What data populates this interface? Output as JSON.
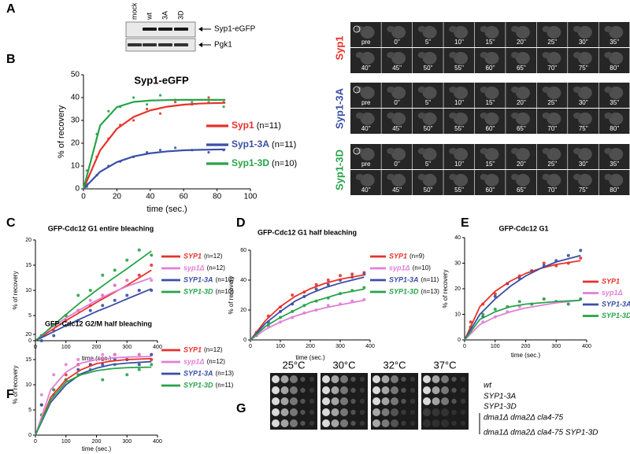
{
  "panels": [
    "A",
    "B",
    "C",
    "D",
    "E",
    "F",
    "G"
  ],
  "blot": {
    "lanes": [
      "mock",
      "wt",
      "3A",
      "3D"
    ],
    "bands": [
      "Syp1-eGFP",
      "Pgk1"
    ]
  },
  "timelapse": {
    "strains": [
      {
        "name": "Syp1",
        "color": "#e8312a"
      },
      {
        "name": "Syp1-3A",
        "color": "#3a4fa5"
      },
      {
        "name": "Syp1-3D",
        "color": "#27a348"
      }
    ],
    "times": [
      "pre",
      "0''",
      "5''",
      "10''",
      "15''",
      "20''",
      "25''",
      "30''",
      "35''",
      "40''",
      "45''",
      "50''",
      "55''",
      "60''",
      "65''",
      "70''",
      "75''",
      "80''"
    ]
  },
  "spot_assay": {
    "temperatures": [
      "25°C",
      "30°C",
      "32°C",
      "37°C"
    ],
    "strains": [
      "wt",
      "SYP1-3A",
      "SYP1-3D",
      "dma1Δ dma2Δ cla4-75",
      "dma1Δ dma2Δ cla4-75 SYP1-3D"
    ]
  },
  "chart_data": [
    {
      "type": "scatter",
      "title": "Syp1-eGFP",
      "xlabel": "time (sec.)",
      "ylabel": "% of recovery",
      "xlim": [
        0,
        100
      ],
      "xticks": [
        0,
        20,
        40,
        60,
        80,
        100
      ],
      "ylim": [
        0,
        50
      ],
      "yticks": [
        0,
        10,
        20,
        30,
        40,
        50
      ],
      "legend_italic": false,
      "x": [
        2,
        8,
        15,
        22,
        30,
        38,
        46,
        55,
        65,
        75,
        84
      ],
      "fit_x": [
        0,
        10,
        20,
        30,
        40,
        50,
        60,
        70,
        85
      ],
      "series": [
        {
          "name": "Syp1",
          "note": "(n=11)",
          "color": "#e8312a",
          "values": [
            2,
            14,
            22,
            28,
            30,
            35,
            33,
            38,
            37,
            40,
            38
          ],
          "fit": [
            0,
            16.9,
            26.3,
            31.5,
            34.4,
            36.0,
            36.9,
            37.4,
            37.7
          ]
        },
        {
          "name": "Syp1-3A",
          "note": "(n=11)",
          "color": "#3a4fa5",
          "values": [
            1,
            6,
            10,
            12,
            14,
            16,
            17,
            18,
            17,
            16,
            17
          ],
          "fit": [
            0,
            7.5,
            11.7,
            14.2,
            15.6,
            16.4,
            16.9,
            17.1,
            17.3
          ]
        },
        {
          "name": "Syp1-3D",
          "note": "(n=10)",
          "color": "#27a348",
          "values": [
            8,
            24,
            34,
            36,
            40,
            37,
            41,
            39,
            38,
            38,
            36
          ],
          "fit": [
            0,
            27.8,
            35.8,
            38.1,
            38.7,
            38.9,
            39.0,
            39.0,
            39.0
          ]
        }
      ]
    },
    {
      "type": "scatter",
      "title": "GFP-Cdc12 G1 entire bleaching",
      "xlabel": "time (sec.)",
      "ylabel": "% of recovery",
      "xlim": [
        0,
        400
      ],
      "xticks": [
        0,
        100,
        200,
        300,
        400
      ],
      "ylim": [
        0,
        20
      ],
      "yticks": [
        0,
        5,
        10,
        15,
        20
      ],
      "legend_italic": true,
      "x": [
        20,
        60,
        100,
        140,
        180,
        220,
        260,
        300,
        340,
        380
      ],
      "fit_x": [
        0,
        50,
        100,
        150,
        200,
        250,
        300,
        380
      ],
      "series": [
        {
          "name": "SYP1",
          "note": "(n=12)",
          "color": "#e8312a",
          "values": [
            1,
            2,
            4,
            6,
            7,
            9,
            11,
            12,
            13,
            15
          ],
          "fit": [
            0,
            2.0,
            4.0,
            5.8,
            7.6,
            9.3,
            11,
            14
          ]
        },
        {
          "name": "syp1Δ",
          "note": "(n=12)",
          "color": "#e07fd6",
          "values": [
            1,
            3,
            5,
            6,
            8,
            9,
            11,
            12,
            10,
            12
          ],
          "fit": [
            0,
            2.5,
            4.5,
            6.3,
            8,
            9.5,
            10.8,
            12.5
          ]
        },
        {
          "name": "SYP1-3A",
          "note": "(n=10)",
          "color": "#3a4fa5",
          "values": [
            0,
            1,
            3,
            4,
            6,
            7,
            8,
            9,
            10,
            10
          ],
          "fit": [
            0,
            1.5,
            3,
            4.4,
            5.8,
            7,
            8.3,
            10.3
          ]
        },
        {
          "name": "SYP1-3D",
          "note": "(n=10)",
          "color": "#27a348",
          "values": [
            1,
            3,
            5,
            9,
            10,
            13,
            14,
            16,
            18,
            17
          ],
          "fit": [
            0,
            2.6,
            5.2,
            7.7,
            10,
            12.2,
            14.3,
            17.8
          ]
        }
      ]
    },
    {
      "type": "scatter",
      "title": "GFP-Cdc12 G1 half bleaching",
      "xlabel": "time (sec.)",
      "ylabel": "% of recovery",
      "xlim": [
        0,
        400
      ],
      "xticks": [
        0,
        100,
        200,
        300,
        400
      ],
      "ylim": [
        0,
        60
      ],
      "yticks": [
        0,
        20,
        40,
        60
      ],
      "legend_italic": true,
      "x": [
        20,
        60,
        100,
        140,
        180,
        220,
        260,
        300,
        340,
        380
      ],
      "fit_x": [
        0,
        50,
        100,
        150,
        200,
        250,
        300,
        380
      ],
      "series": [
        {
          "name": "SYP1",
          "note": "(n=9)",
          "color": "#e8312a",
          "values": [
            5,
            16,
            22,
            30,
            32,
            37,
            40,
            43,
            44,
            45
          ],
          "fit": [
            0,
            12.9,
            22.3,
            29.2,
            34.2,
            37.9,
            40.6,
            43.5
          ]
        },
        {
          "name": "syp1Δ",
          "note": "(n=10)",
          "color": "#e07fd6",
          "values": [
            4,
            9,
            12,
            15,
            18,
            20,
            23,
            24,
            26,
            27
          ],
          "fit": [
            0,
            7,
            12,
            16,
            19,
            21.5,
            23.5,
            26.5
          ]
        },
        {
          "name": "SYP1-3A",
          "note": "(n=11)",
          "color": "#3a4fa5",
          "values": [
            3,
            12,
            19,
            24,
            29,
            34,
            37,
            40,
            42,
            44
          ],
          "fit": [
            0,
            11,
            19,
            26,
            31,
            35,
            38,
            42
          ]
        },
        {
          "name": "SYP1-3D",
          "note": "(n=13)",
          "color": "#27a348",
          "values": [
            4,
            10,
            15,
            19,
            23,
            26,
            28,
            31,
            33,
            35
          ],
          "fit": [
            0,
            9,
            15,
            20,
            25,
            28,
            31,
            34
          ]
        }
      ]
    },
    {
      "type": "scatter",
      "title": "GFP-Cdc12 G1",
      "xlabel": "time (sec.)",
      "ylabel": "% of recovery",
      "xlim": [
        0,
        400
      ],
      "xticks": [
        0,
        100,
        200,
        300,
        400
      ],
      "ylim": [
        0,
        40
      ],
      "yticks": [
        0,
        10,
        20,
        30,
        40
      ],
      "legend_italic": true,
      "x": [
        20,
        60,
        100,
        140,
        180,
        220,
        260,
        300,
        340,
        380
      ],
      "fit_x": [
        0,
        50,
        100,
        150,
        200,
        250,
        300,
        380
      ],
      "series": [
        {
          "name": "SYP1",
          "color": "#e8312a",
          "values": [
            7,
            14,
            18,
            22,
            25,
            27,
            30,
            29,
            30,
            32
          ],
          "fit": [
            0,
            13,
            19,
            23,
            26,
            28,
            29.5,
            31
          ]
        },
        {
          "name": "syp1Δ",
          "color": "#e07fd6",
          "values": [
            3,
            7,
            9,
            11,
            13,
            14,
            16,
            15,
            14,
            16
          ],
          "fit": [
            0,
            6,
            9,
            11,
            12.5,
            13.5,
            14.5,
            15.5
          ]
        },
        {
          "name": "SYP1-3A",
          "color": "#3a4fa5",
          "values": [
            5,
            9,
            17,
            22,
            24,
            27,
            29,
            31,
            33,
            35
          ],
          "fit": [
            0,
            10,
            16,
            21,
            25,
            28,
            30.5,
            33
          ]
        },
        {
          "name": "SYP1-3D",
          "color": "#27a348",
          "values": [
            5,
            10,
            12,
            13,
            15,
            14,
            16,
            15,
            14,
            16
          ],
          "fit": [
            0,
            8,
            11,
            13,
            14,
            14.5,
            15,
            15.5
          ]
        }
      ]
    },
    {
      "type": "scatter",
      "title": "GFP-Cdc12 G2/M half bleaching",
      "xlabel": "time (sec.)",
      "ylabel": "% of recovery",
      "xlim": [
        0,
        400
      ],
      "xticks": [
        0,
        100,
        200,
        300,
        400
      ],
      "ylim": [
        0,
        20
      ],
      "yticks": [
        0,
        5,
        10,
        15,
        20
      ],
      "legend_italic": true,
      "x": [
        20,
        60,
        100,
        140,
        180,
        220,
        260,
        300,
        340,
        380
      ],
      "fit_x": [
        0,
        50,
        100,
        150,
        200,
        250,
        300,
        380
      ],
      "series": [
        {
          "name": "SYP1",
          "note": "(n=12)",
          "color": "#e8312a",
          "values": [
            6,
            9,
            12,
            14,
            14,
            15,
            16,
            15,
            16,
            15
          ],
          "fit": [
            0,
            7.5,
            11,
            13,
            14.2,
            14.7,
            15,
            15.2
          ]
        },
        {
          "name": "syp1Δ",
          "note": "(n=12)",
          "color": "#e07fd6",
          "values": [
            8,
            12,
            14,
            15,
            15,
            16,
            16,
            15,
            16,
            16
          ],
          "fit": [
            0,
            9,
            12.5,
            14.3,
            15,
            15.3,
            15.5,
            15.6
          ]
        },
        {
          "name": "SYP1-3A",
          "note": "(n=13)",
          "color": "#3a4fa5",
          "values": [
            6,
            8,
            11,
            13,
            14,
            14,
            15,
            15,
            14,
            16
          ],
          "fit": [
            0,
            6.5,
            10,
            12.2,
            13.3,
            14,
            14.3,
            14.6
          ]
        },
        {
          "name": "SYP1-3D",
          "note": "(n=11)",
          "color": "#27a348",
          "values": [
            4,
            9,
            11,
            12,
            13,
            11,
            14,
            12,
            13,
            14
          ],
          "fit": [
            0,
            7,
            10.5,
            12,
            12.8,
            13.2,
            13.4,
            13.5
          ]
        }
      ]
    }
  ]
}
